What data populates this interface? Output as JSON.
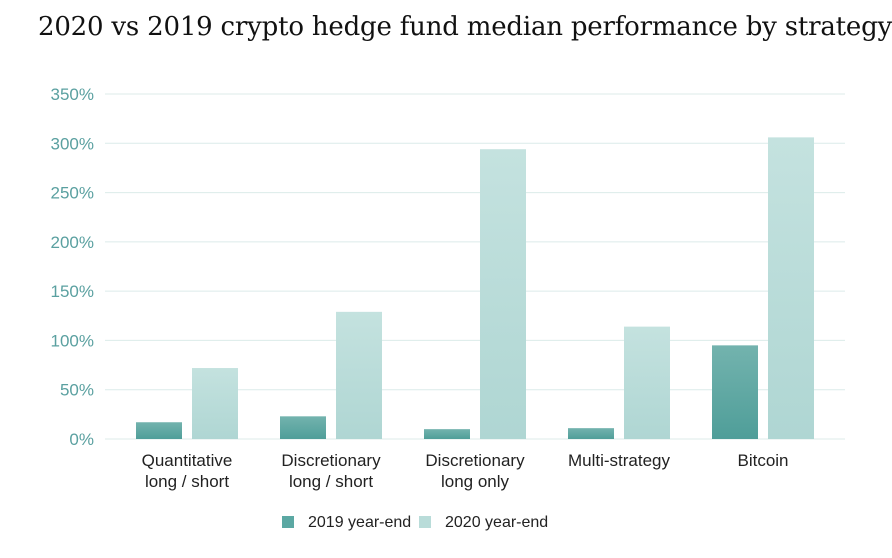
{
  "chart_data": {
    "type": "bar",
    "title": "2020 vs 2019 crypto hedge fund median performance by strategy",
    "xlabel": "",
    "ylabel": "",
    "ylim": [
      0,
      350
    ],
    "yticks": [
      "0%",
      "50%",
      "100%",
      "150%",
      "200%",
      "250%",
      "300%",
      "350%"
    ],
    "categories": [
      [
        "Quantitative",
        "long / short"
      ],
      [
        "Discretionary",
        "long / short"
      ],
      [
        "Discretionary",
        "long only"
      ],
      [
        "Multi-strategy"
      ],
      [
        "Bitcoin"
      ]
    ],
    "series": [
      {
        "name": "2019 year-end",
        "color": "#5ba8a3",
        "values": [
          17,
          23,
          10,
          11,
          95
        ]
      },
      {
        "name": "2020 year-end",
        "color": "#b9dcd9",
        "values": [
          72,
          129,
          294,
          114,
          306
        ]
      }
    ],
    "grid": true,
    "legend_position": "bottom-center"
  }
}
